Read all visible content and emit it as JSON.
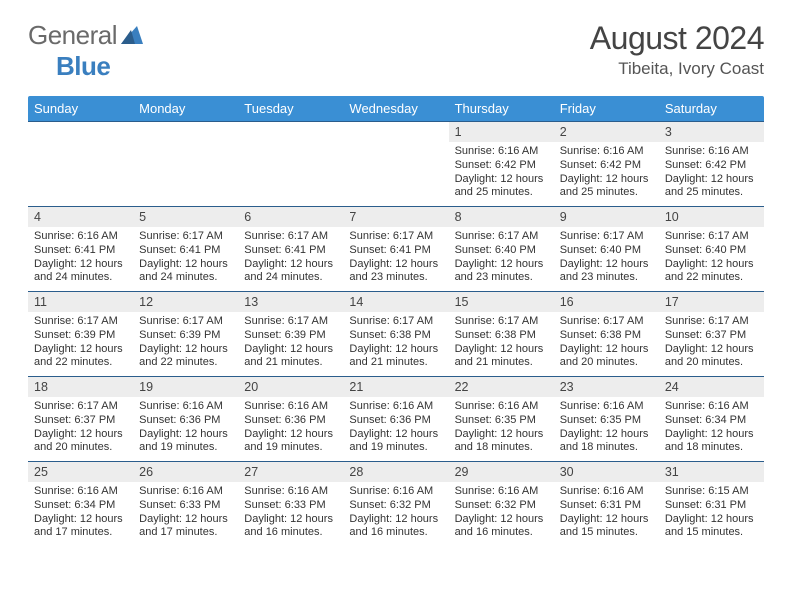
{
  "logo": {
    "textA": "General",
    "textB": "Blue"
  },
  "header": {
    "month": "August 2024",
    "location": "Tibeita, Ivory Coast"
  },
  "styling": {
    "page_bg": "#ffffff",
    "header_bar_bg": "#3a8fd4",
    "header_bar_text": "#ffffff",
    "daynum_bg": "#ededed",
    "row_border": "#2b5d8c",
    "title_color": "#444444",
    "body_text": "#333333",
    "logo_gray": "#6a6a6a",
    "logo_blue": "#3a7fbf",
    "font_title": 32,
    "font_loc": 17,
    "font_dayhdr": 13,
    "font_daynum": 12.5,
    "font_body": 11
  },
  "dayHeaders": [
    "Sunday",
    "Monday",
    "Tuesday",
    "Wednesday",
    "Thursday",
    "Friday",
    "Saturday"
  ],
  "weeks": [
    [
      null,
      null,
      null,
      null,
      {
        "num": "1",
        "sunrise": "6:16 AM",
        "sunset": "6:42 PM",
        "daylight": "12 hours and 25 minutes."
      },
      {
        "num": "2",
        "sunrise": "6:16 AM",
        "sunset": "6:42 PM",
        "daylight": "12 hours and 25 minutes."
      },
      {
        "num": "3",
        "sunrise": "6:16 AM",
        "sunset": "6:42 PM",
        "daylight": "12 hours and 25 minutes."
      }
    ],
    [
      {
        "num": "4",
        "sunrise": "6:16 AM",
        "sunset": "6:41 PM",
        "daylight": "12 hours and 24 minutes."
      },
      {
        "num": "5",
        "sunrise": "6:17 AM",
        "sunset": "6:41 PM",
        "daylight": "12 hours and 24 minutes."
      },
      {
        "num": "6",
        "sunrise": "6:17 AM",
        "sunset": "6:41 PM",
        "daylight": "12 hours and 24 minutes."
      },
      {
        "num": "7",
        "sunrise": "6:17 AM",
        "sunset": "6:41 PM",
        "daylight": "12 hours and 23 minutes."
      },
      {
        "num": "8",
        "sunrise": "6:17 AM",
        "sunset": "6:40 PM",
        "daylight": "12 hours and 23 minutes."
      },
      {
        "num": "9",
        "sunrise": "6:17 AM",
        "sunset": "6:40 PM",
        "daylight": "12 hours and 23 minutes."
      },
      {
        "num": "10",
        "sunrise": "6:17 AM",
        "sunset": "6:40 PM",
        "daylight": "12 hours and 22 minutes."
      }
    ],
    [
      {
        "num": "11",
        "sunrise": "6:17 AM",
        "sunset": "6:39 PM",
        "daylight": "12 hours and 22 minutes."
      },
      {
        "num": "12",
        "sunrise": "6:17 AM",
        "sunset": "6:39 PM",
        "daylight": "12 hours and 22 minutes."
      },
      {
        "num": "13",
        "sunrise": "6:17 AM",
        "sunset": "6:39 PM",
        "daylight": "12 hours and 21 minutes."
      },
      {
        "num": "14",
        "sunrise": "6:17 AM",
        "sunset": "6:38 PM",
        "daylight": "12 hours and 21 minutes."
      },
      {
        "num": "15",
        "sunrise": "6:17 AM",
        "sunset": "6:38 PM",
        "daylight": "12 hours and 21 minutes."
      },
      {
        "num": "16",
        "sunrise": "6:17 AM",
        "sunset": "6:38 PM",
        "daylight": "12 hours and 20 minutes."
      },
      {
        "num": "17",
        "sunrise": "6:17 AM",
        "sunset": "6:37 PM",
        "daylight": "12 hours and 20 minutes."
      }
    ],
    [
      {
        "num": "18",
        "sunrise": "6:17 AM",
        "sunset": "6:37 PM",
        "daylight": "12 hours and 20 minutes."
      },
      {
        "num": "19",
        "sunrise": "6:16 AM",
        "sunset": "6:36 PM",
        "daylight": "12 hours and 19 minutes."
      },
      {
        "num": "20",
        "sunrise": "6:16 AM",
        "sunset": "6:36 PM",
        "daylight": "12 hours and 19 minutes."
      },
      {
        "num": "21",
        "sunrise": "6:16 AM",
        "sunset": "6:36 PM",
        "daylight": "12 hours and 19 minutes."
      },
      {
        "num": "22",
        "sunrise": "6:16 AM",
        "sunset": "6:35 PM",
        "daylight": "12 hours and 18 minutes."
      },
      {
        "num": "23",
        "sunrise": "6:16 AM",
        "sunset": "6:35 PM",
        "daylight": "12 hours and 18 minutes."
      },
      {
        "num": "24",
        "sunrise": "6:16 AM",
        "sunset": "6:34 PM",
        "daylight": "12 hours and 18 minutes."
      }
    ],
    [
      {
        "num": "25",
        "sunrise": "6:16 AM",
        "sunset": "6:34 PM",
        "daylight": "12 hours and 17 minutes."
      },
      {
        "num": "26",
        "sunrise": "6:16 AM",
        "sunset": "6:33 PM",
        "daylight": "12 hours and 17 minutes."
      },
      {
        "num": "27",
        "sunrise": "6:16 AM",
        "sunset": "6:33 PM",
        "daylight": "12 hours and 16 minutes."
      },
      {
        "num": "28",
        "sunrise": "6:16 AM",
        "sunset": "6:32 PM",
        "daylight": "12 hours and 16 minutes."
      },
      {
        "num": "29",
        "sunrise": "6:16 AM",
        "sunset": "6:32 PM",
        "daylight": "12 hours and 16 minutes."
      },
      {
        "num": "30",
        "sunrise": "6:16 AM",
        "sunset": "6:31 PM",
        "daylight": "12 hours and 15 minutes."
      },
      {
        "num": "31",
        "sunrise": "6:15 AM",
        "sunset": "6:31 PM",
        "daylight": "12 hours and 15 minutes."
      }
    ]
  ],
  "labels": {
    "sunrise": "Sunrise: ",
    "sunset": "Sunset: ",
    "daylight": "Daylight: "
  }
}
